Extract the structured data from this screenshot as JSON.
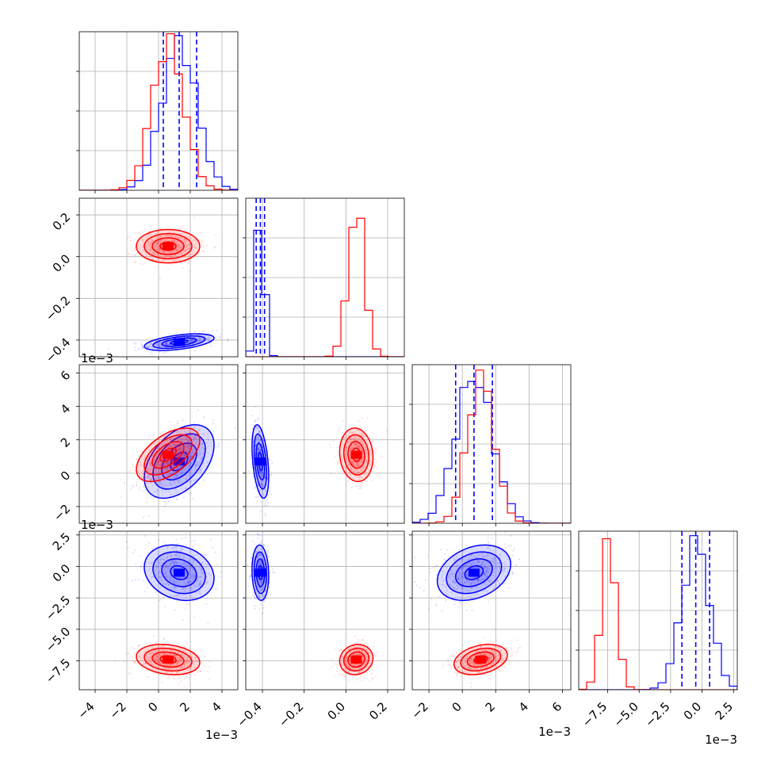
{
  "colors": {
    "series_a": "#0000ff",
    "series_b": "#ff0000",
    "quantile_lines": "#0000ff",
    "grid": "#b0b0b0"
  },
  "chart_data": {
    "type": "corner",
    "dimensions": 4,
    "grid": true,
    "series": [
      {
        "color": "#0000ff",
        "means": [
          0.0013,
          -0.41,
          0.0007,
          -0.0005
        ],
        "sds": [
          0.0011,
          0.02,
          0.0011,
          0.0011
        ],
        "quantile_lines": [
          [
            0.0003,
            0.0013,
            0.0024
          ],
          [
            -0.43,
            -0.41,
            -0.39
          ],
          [
            -0.0004,
            0.0007,
            0.0018
          ],
          [
            -0.0016,
            -0.0005,
            0.0006
          ]
        ]
      },
      {
        "color": "#ff0000",
        "means": [
          0.0006,
          0.05,
          0.0011,
          -0.0074
        ],
        "sds": [
          0.001,
          0.04,
          0.0008,
          0.0006
        ]
      }
    ],
    "axes": [
      {
        "range": [
          -0.005,
          0.005
        ],
        "ticks": [
          -0.004,
          -0.002,
          0.0,
          0.002,
          0.004
        ],
        "tick_labels": [
          "−4",
          "−2",
          "0",
          "2",
          "4"
        ],
        "offset_label": "1e−3"
      },
      {
        "range": [
          -0.48,
          0.28
        ],
        "ticks": [
          -0.4,
          -0.2,
          0.0,
          0.2
        ],
        "tick_labels": [
          "−0.4",
          "−0.2",
          "0.0",
          "0.2"
        ],
        "offset_label": ""
      },
      {
        "range": [
          -0.003,
          0.0065
        ],
        "ticks": [
          -0.002,
          0.0,
          0.002,
          0.004,
          0.006
        ],
        "tick_labels": [
          "−2",
          "0",
          "2",
          "4",
          "6"
        ],
        "offset_label": "1e−3"
      },
      {
        "range": [
          -0.0098,
          0.0028
        ],
        "ticks": [
          -0.0075,
          -0.005,
          -0.0025,
          0.0,
          0.0025
        ],
        "tick_labels": [
          "−7.5",
          "−5.0",
          "−2.5",
          "0.0",
          "2.5"
        ],
        "offset_label": "1e−3"
      }
    ]
  }
}
